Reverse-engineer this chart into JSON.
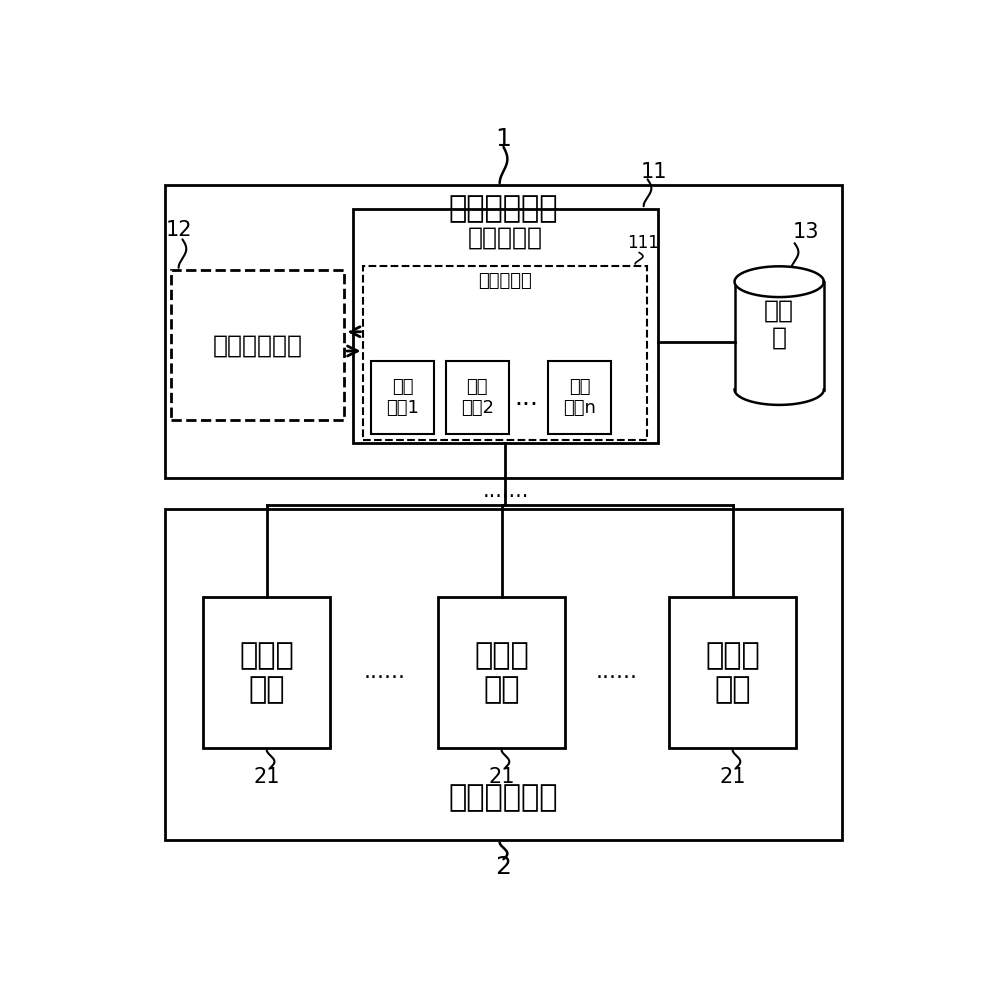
{
  "bg_color": "#ffffff",
  "line_color": "#000000",
  "title": "测评服务平台",
  "label_1": "1",
  "label_2": "2",
  "label_11": "11",
  "label_12": "12",
  "label_13": "13",
  "label_111": "111",
  "label_21": "21",
  "server_label": "测评服务器",
  "frontend_label": "前端交互界面",
  "db_label": "数据\n库",
  "cache_label": "任务缓存表",
  "task1_label": "测评\n任务1",
  "task2_label": "测评\n任务2",
  "taskn_label": "测评\n任务n",
  "exec_platform_label": "测评执行平台",
  "exec_room_label": "测评执\n行室",
  "dots_h": "......",
  "dots_h2": ".......",
  "font_size_large": 22,
  "font_size_medium": 18,
  "font_size_small": 15,
  "font_size_tiny": 13
}
